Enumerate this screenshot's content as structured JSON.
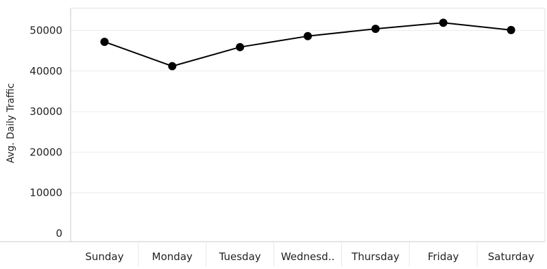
{
  "chart_data": {
    "type": "line",
    "categories": [
      "Sunday",
      "Monday",
      "Tuesday",
      "Wednesd..",
      "Thursday",
      "Friday",
      "Saturday"
    ],
    "values": [
      47200,
      41200,
      45900,
      48600,
      50400,
      51900,
      50100
    ],
    "title": "",
    "xlabel": "",
    "ylabel": "Avg. Daily Traffic",
    "ylim": [
      0,
      55000
    ],
    "yticks": [
      0,
      10000,
      20000,
      30000,
      40000,
      50000
    ],
    "ytick_labels": [
      "0",
      "10000",
      "20000",
      "30000",
      "40000",
      "50000"
    ],
    "grid": true,
    "legend": "none",
    "colors": {
      "line": "#000000",
      "marker": "#000000",
      "grid": "#ececec",
      "axis": "#c8c8c8",
      "text": "#222222"
    }
  }
}
